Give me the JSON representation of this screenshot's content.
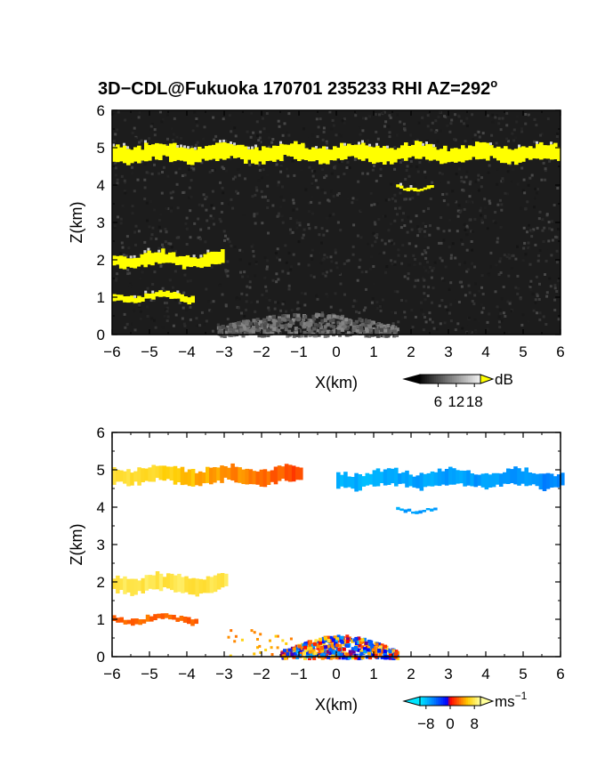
{
  "title": "3D−CDL@Fukuoka 170701 235233 RHI AZ=292",
  "title_degree": "o",
  "chart_data": [
    {
      "type": "heatmap",
      "name": "intensity",
      "xlabel": "X(km)",
      "ylabel": "Z(km)",
      "xlim": [
        -6,
        6
      ],
      "ylim": [
        0,
        6
      ],
      "xticks": [
        "−6",
        "−5",
        "−4",
        "−3",
        "−2",
        "−1",
        "0",
        "1",
        "2",
        "3",
        "4",
        "5",
        "6"
      ],
      "yticks": [
        "0",
        "1",
        "2",
        "3",
        "4",
        "5",
        "6"
      ],
      "colorbar": {
        "unit": "dB",
        "ticks": [
          "6",
          "12",
          "18"
        ],
        "range": [
          0,
          20
        ]
      },
      "background": "dark-gray speckle noise",
      "layers": [
        {
          "feature": "cloud-layer-upper",
          "x": [
            -6.0,
            6.0
          ],
          "z": [
            4.6,
            5.1
          ],
          "value_db": 18,
          "color": "#ffff00"
        },
        {
          "feature": "cloud-patch",
          "x": [
            1.6,
            2.6
          ],
          "z": [
            3.9,
            4.0
          ],
          "value_db": 18,
          "color": "#ffff00"
        },
        {
          "feature": "cloud-layer-2km",
          "x": [
            -6.0,
            -3.0
          ],
          "z": [
            1.8,
            2.2
          ],
          "value_db": 18,
          "color": "#ffff00"
        },
        {
          "feature": "cloud-layer-1km",
          "x": [
            -6.0,
            -3.8
          ],
          "z": [
            0.9,
            1.1
          ],
          "value_db": 18,
          "color": "#ffff00"
        },
        {
          "feature": "near-surface-haze",
          "x": [
            -3.2,
            1.6
          ],
          "z": [
            0.0,
            0.6
          ],
          "value_db": 10,
          "color": "#8a8a8a"
        }
      ]
    },
    {
      "type": "heatmap",
      "name": "velocity",
      "xlabel": "X(km)",
      "ylabel": "Z(km)",
      "xlim": [
        -6,
        6
      ],
      "ylim": [
        0,
        6
      ],
      "xticks": [
        "−6",
        "−5",
        "−4",
        "−3",
        "−2",
        "−1",
        "0",
        "1",
        "2",
        "3",
        "4",
        "5",
        "6"
      ],
      "yticks": [
        "0",
        "1",
        "2",
        "3",
        "4",
        "5",
        "6"
      ],
      "colorbar": {
        "unit": "ms",
        "unit_exponent": "−1",
        "ticks": [
          "−8",
          "0",
          "8"
        ],
        "range": [
          -10,
          10
        ]
      },
      "layers": [
        {
          "feature": "upper-layer-west",
          "x": [
            -6.0,
            -1.0
          ],
          "z": [
            4.6,
            5.1
          ],
          "velocity_ms": [
            8,
            2
          ]
        },
        {
          "feature": "upper-layer-east",
          "x": [
            0.0,
            6.0
          ],
          "z": [
            4.5,
            5.0
          ],
          "velocity_ms": [
            -8,
            -6
          ]
        },
        {
          "feature": "patch-4km",
          "x": [
            1.6,
            2.6
          ],
          "z": [
            3.9,
            4.0
          ],
          "velocity_ms": -7
        },
        {
          "feature": "layer-2km",
          "x": [
            -6.0,
            -3.0
          ],
          "z": [
            1.7,
            2.2
          ],
          "velocity_ms": 8
        },
        {
          "feature": "layer-1km",
          "x": [
            -6.0,
            -3.8
          ],
          "z": [
            0.9,
            1.1
          ],
          "velocity_ms": 3
        },
        {
          "feature": "boundary-layer-mixed",
          "x": [
            -1.5,
            1.6
          ],
          "z": [
            0.0,
            0.6
          ],
          "velocity_ms": [
            -8,
            8
          ]
        }
      ]
    }
  ],
  "palettes": {
    "intensity": [
      "#000000",
      "#333333",
      "#777777",
      "#bbbbbb",
      "#ffffff",
      "#ffff00"
    ],
    "velocity": [
      "#00e5ff",
      "#0088ff",
      "#0000ff",
      "#ff0000",
      "#ff6600",
      "#ffcc00",
      "#ffff99"
    ],
    "frame": "#000000",
    "background": "#ffffff"
  }
}
